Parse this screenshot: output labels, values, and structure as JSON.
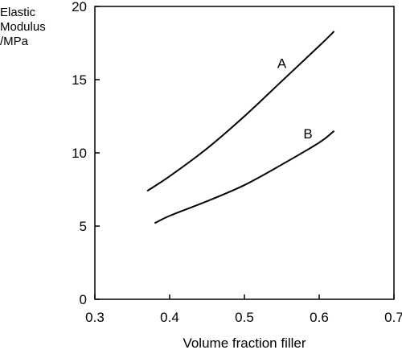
{
  "chart_data": {
    "type": "line",
    "title": "",
    "xlabel": "Volume fraction filler",
    "ylabel": [
      "Elastic",
      "Modulus",
      "/MPa"
    ],
    "xlim": [
      0.3,
      0.7
    ],
    "ylim": [
      0,
      20
    ],
    "xticks": [
      0.3,
      0.4,
      0.5,
      0.6,
      0.7
    ],
    "yticks": [
      0,
      5,
      10,
      15,
      20
    ],
    "xtick_labels": [
      "0.3",
      "0.4",
      "0.5",
      "0.6",
      "0.7"
    ],
    "ytick_labels": [
      "0",
      "5",
      "10",
      "15",
      "20"
    ],
    "grid": false,
    "series": [
      {
        "name": "A",
        "x": [
          0.37,
          0.4,
          0.45,
          0.5,
          0.55,
          0.6,
          0.62
        ],
        "y": [
          7.4,
          8.4,
          10.3,
          12.5,
          14.9,
          17.3,
          18.3
        ]
      },
      {
        "name": "B",
        "x": [
          0.38,
          0.4,
          0.45,
          0.5,
          0.55,
          0.6,
          0.62
        ],
        "y": [
          5.2,
          5.7,
          6.7,
          7.8,
          9.2,
          10.7,
          11.5
        ]
      }
    ]
  }
}
